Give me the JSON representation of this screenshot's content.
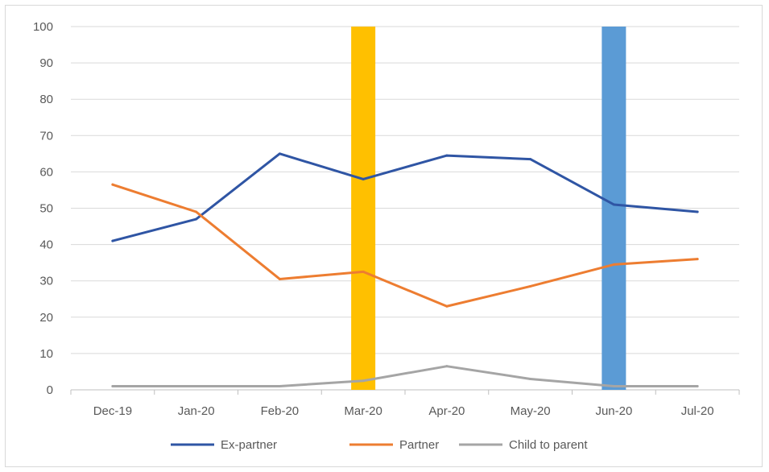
{
  "chart_data": {
    "type": "line",
    "title": "",
    "xlabel": "",
    "ylabel": "",
    "categories": [
      "Dec-19",
      "Jan-20",
      "Feb-20",
      "Mar-20",
      "Apr-20",
      "May-20",
      "Jun-20",
      "Jul-20"
    ],
    "ylim": [
      0,
      100
    ],
    "yticks": [
      "0",
      "10",
      "20",
      "30",
      "40",
      "50",
      "60",
      "70",
      "80",
      "90",
      "100"
    ],
    "grid": true,
    "legend_position": "bottom",
    "series": [
      {
        "name": "Ex-partner",
        "color": "#2f55a4",
        "values": [
          41,
          47,
          65,
          58,
          64.5,
          63.5,
          51,
          49
        ]
      },
      {
        "name": "Partner",
        "color": "#ed7d31",
        "values": [
          56.5,
          49,
          30.5,
          32.5,
          23,
          28.5,
          34.5,
          36
        ]
      },
      {
        "name": "Child to parent",
        "color": "#a5a5a5",
        "values": [
          1,
          1,
          1,
          2.5,
          6.5,
          3,
          1,
          1
        ]
      }
    ],
    "highlight_bands": [
      {
        "category": "Mar-20",
        "color": "#ffc000"
      },
      {
        "category": "Jun-20",
        "color": "#5b9bd5"
      }
    ]
  }
}
